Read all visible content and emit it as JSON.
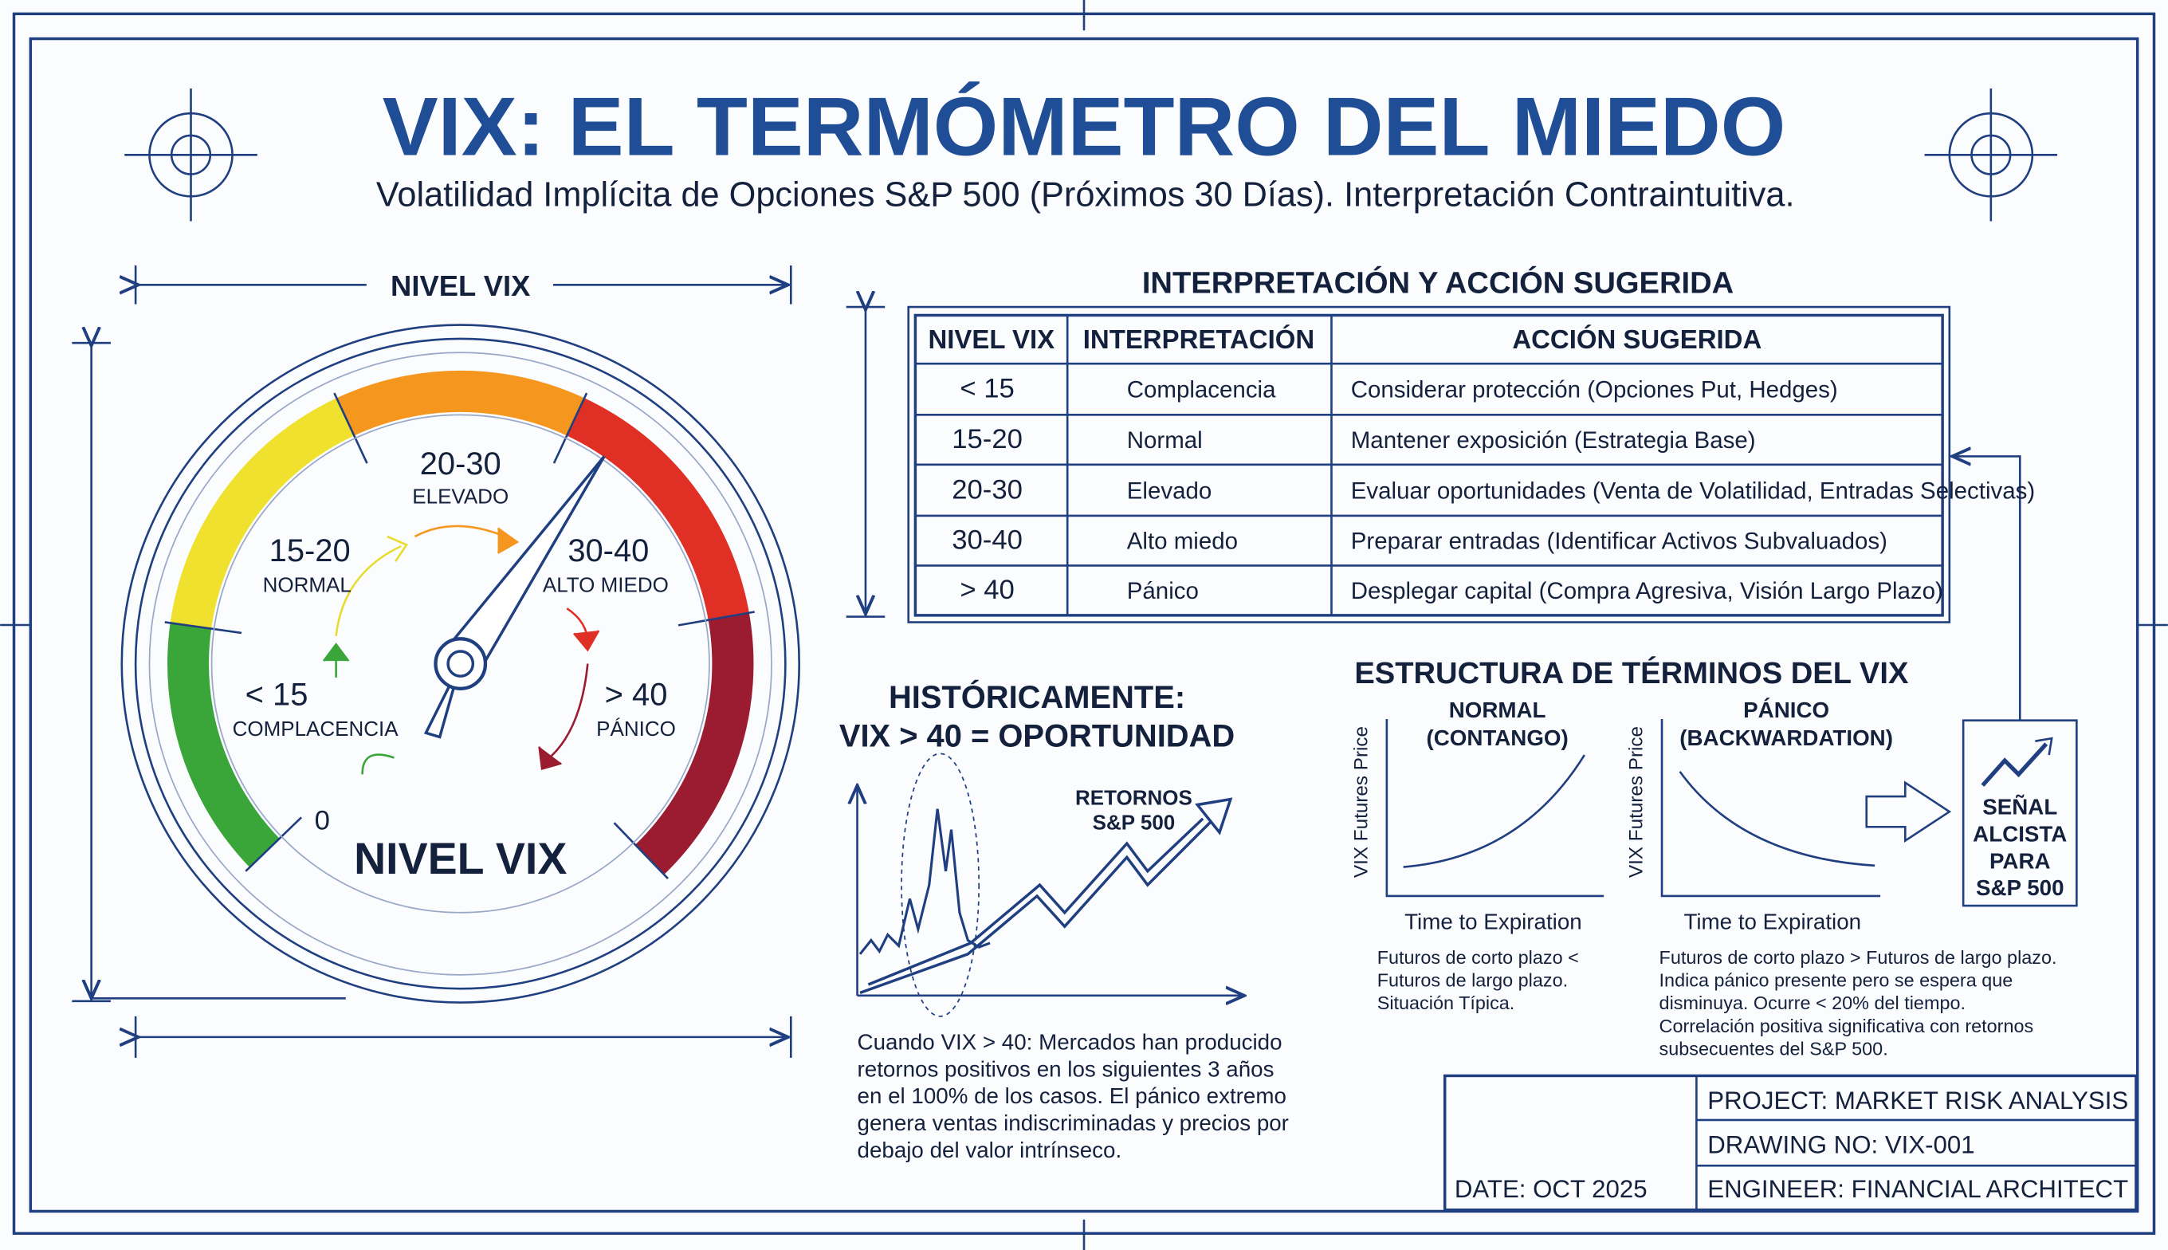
{
  "header": {
    "title": "VIX: EL TERMÓMETRO DEL MIEDO",
    "subtitle": "Volatilidad Implícita de Opciones S&P 500 (Próximos 30 Días). Interpretación Contraintuitiva."
  },
  "gauge": {
    "dimension_label": "NIVEL VIX",
    "center_label": "NIVEL VIX",
    "zero_label": "0",
    "zones": [
      {
        "range": "< 15",
        "label": "COMPLACENCIA"
      },
      {
        "range": "15-20",
        "label": "NORMAL"
      },
      {
        "range": "20-30",
        "label": "ELEVADO"
      },
      {
        "range": "30-40",
        "label": "ALTO MIEDO"
      },
      {
        "range": "> 40",
        "label": "PÁNICO"
      }
    ]
  },
  "table": {
    "title": "INTERPRETACIÓN Y ACCIÓN SUGERIDA",
    "header": [
      "NIVEL VIX",
      "INTERPRETACIÓN",
      "ACCIÓN SUGERIDA"
    ],
    "rows": [
      [
        "< 15",
        "Complacencia",
        "Considerar protección (Opciones Put, Hedges)"
      ],
      [
        "15-20",
        "Normal",
        "Mantener exposición (Estrategia Base)"
      ],
      [
        "20-30",
        "Elevado",
        "Evaluar oportunidades (Venta de Volatilidad, Entradas Selectivas)"
      ],
      [
        "30-40",
        "Alto miedo",
        "Preparar entradas (Identificar Activos Subvaluados)"
      ],
      [
        "> 40",
        "Pánico",
        "Desplegar capital (Compra Agresiva, Visión Largo Plazo)"
      ]
    ]
  },
  "historical": {
    "title": [
      "HISTÓRICAMENTE:",
      "VIX > 40 = OPORTUNIDAD"
    ],
    "returns_label": [
      "RETORNOS",
      "S&P 500"
    ],
    "note": [
      "Cuando VIX > 40: Mercados han producido",
      "retornos positivos en los siguientes 3 años",
      "en el 100% de los casos. El pánico extremo",
      "genera ventas indiscriminadas y precios por",
      "debajo del valor intrínseco."
    ]
  },
  "term_structure": {
    "title": "ESTRUCTURA DE TÉRMINOS DEL VIX",
    "panels": [
      {
        "title": [
          "NORMAL",
          "(CONTANGO)"
        ],
        "y_label": "VIX Futures Price",
        "x_label": "Time to Expiration",
        "note": [
          "Futuros de corto plazo <",
          "Futuros de largo plazo.",
          "Situación Típica."
        ]
      },
      {
        "title": [
          "PÁNICO",
          "(BACKWARDATION)"
        ],
        "y_label": "VIX Futures Price",
        "x_label": "Time to Expiration",
        "note": [
          "Futuros de corto plazo > Futuros de largo plazo.",
          "Indica pánico presente pero se espera que",
          "disminuya. Ocurre < 20% del tiempo.",
          "Correlación positiva significativa con retornos",
          "subsecuentes del S&P 500."
        ]
      }
    ]
  },
  "signal": [
    "SEÑAL",
    "ALCISTA",
    "PARA",
    "S&P 500"
  ],
  "title_block": {
    "project": "PROJECT: MARKET RISK ANALYSIS",
    "drawing": "DRAWING NO: VIX-001",
    "date": "DATE: OCT 2025",
    "engineer": "ENGINEER: FINANCIAL ARCHITECT"
  }
}
